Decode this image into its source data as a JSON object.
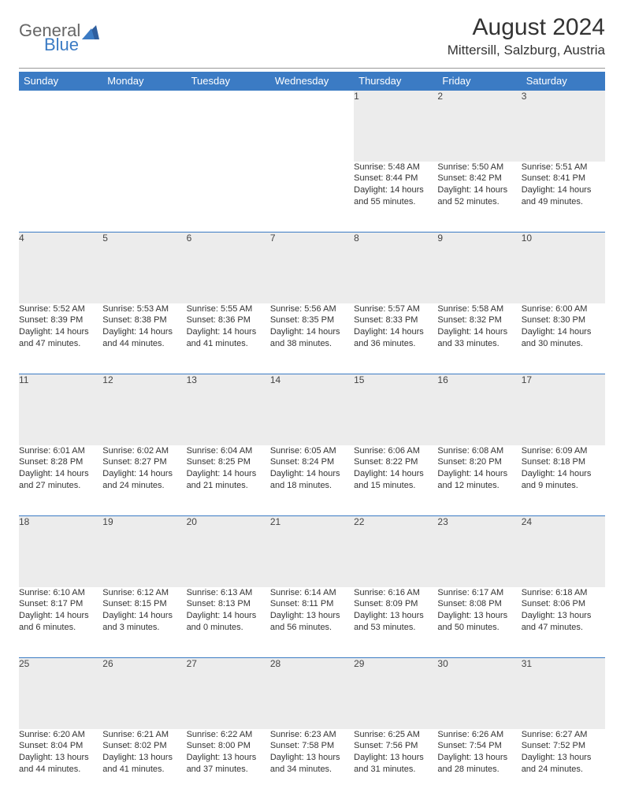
{
  "logo": {
    "text1": "General",
    "text2": "Blue"
  },
  "header": {
    "month_title": "August 2024",
    "location": "Mittersill, Salzburg, Austria"
  },
  "colors": {
    "header_bg": "#3b7bc4",
    "header_text": "#ffffff",
    "daynum_bg": "#ececec",
    "border_top": "#3b7bc4",
    "body_text": "#333333"
  },
  "day_headers": [
    "Sunday",
    "Monday",
    "Tuesday",
    "Wednesday",
    "Thursday",
    "Friday",
    "Saturday"
  ],
  "weeks": [
    {
      "nums": [
        "",
        "",
        "",
        "",
        "1",
        "2",
        "3"
      ],
      "cells": [
        null,
        null,
        null,
        null,
        {
          "sunrise": "5:48 AM",
          "sunset": "8:44 PM",
          "daylight": "14 hours and 55 minutes."
        },
        {
          "sunrise": "5:50 AM",
          "sunset": "8:42 PM",
          "daylight": "14 hours and 52 minutes."
        },
        {
          "sunrise": "5:51 AM",
          "sunset": "8:41 PM",
          "daylight": "14 hours and 49 minutes."
        }
      ]
    },
    {
      "nums": [
        "4",
        "5",
        "6",
        "7",
        "8",
        "9",
        "10"
      ],
      "cells": [
        {
          "sunrise": "5:52 AM",
          "sunset": "8:39 PM",
          "daylight": "14 hours and 47 minutes."
        },
        {
          "sunrise": "5:53 AM",
          "sunset": "8:38 PM",
          "daylight": "14 hours and 44 minutes."
        },
        {
          "sunrise": "5:55 AM",
          "sunset": "8:36 PM",
          "daylight": "14 hours and 41 minutes."
        },
        {
          "sunrise": "5:56 AM",
          "sunset": "8:35 PM",
          "daylight": "14 hours and 38 minutes."
        },
        {
          "sunrise": "5:57 AM",
          "sunset": "8:33 PM",
          "daylight": "14 hours and 36 minutes."
        },
        {
          "sunrise": "5:58 AM",
          "sunset": "8:32 PM",
          "daylight": "14 hours and 33 minutes."
        },
        {
          "sunrise": "6:00 AM",
          "sunset": "8:30 PM",
          "daylight": "14 hours and 30 minutes."
        }
      ]
    },
    {
      "nums": [
        "11",
        "12",
        "13",
        "14",
        "15",
        "16",
        "17"
      ],
      "cells": [
        {
          "sunrise": "6:01 AM",
          "sunset": "8:28 PM",
          "daylight": "14 hours and 27 minutes."
        },
        {
          "sunrise": "6:02 AM",
          "sunset": "8:27 PM",
          "daylight": "14 hours and 24 minutes."
        },
        {
          "sunrise": "6:04 AM",
          "sunset": "8:25 PM",
          "daylight": "14 hours and 21 minutes."
        },
        {
          "sunrise": "6:05 AM",
          "sunset": "8:24 PM",
          "daylight": "14 hours and 18 minutes."
        },
        {
          "sunrise": "6:06 AM",
          "sunset": "8:22 PM",
          "daylight": "14 hours and 15 minutes."
        },
        {
          "sunrise": "6:08 AM",
          "sunset": "8:20 PM",
          "daylight": "14 hours and 12 minutes."
        },
        {
          "sunrise": "6:09 AM",
          "sunset": "8:18 PM",
          "daylight": "14 hours and 9 minutes."
        }
      ]
    },
    {
      "nums": [
        "18",
        "19",
        "20",
        "21",
        "22",
        "23",
        "24"
      ],
      "cells": [
        {
          "sunrise": "6:10 AM",
          "sunset": "8:17 PM",
          "daylight": "14 hours and 6 minutes."
        },
        {
          "sunrise": "6:12 AM",
          "sunset": "8:15 PM",
          "daylight": "14 hours and 3 minutes."
        },
        {
          "sunrise": "6:13 AM",
          "sunset": "8:13 PM",
          "daylight": "14 hours and 0 minutes."
        },
        {
          "sunrise": "6:14 AM",
          "sunset": "8:11 PM",
          "daylight": "13 hours and 56 minutes."
        },
        {
          "sunrise": "6:16 AM",
          "sunset": "8:09 PM",
          "daylight": "13 hours and 53 minutes."
        },
        {
          "sunrise": "6:17 AM",
          "sunset": "8:08 PM",
          "daylight": "13 hours and 50 minutes."
        },
        {
          "sunrise": "6:18 AM",
          "sunset": "8:06 PM",
          "daylight": "13 hours and 47 minutes."
        }
      ]
    },
    {
      "nums": [
        "25",
        "26",
        "27",
        "28",
        "29",
        "30",
        "31"
      ],
      "cells": [
        {
          "sunrise": "6:20 AM",
          "sunset": "8:04 PM",
          "daylight": "13 hours and 44 minutes."
        },
        {
          "sunrise": "6:21 AM",
          "sunset": "8:02 PM",
          "daylight": "13 hours and 41 minutes."
        },
        {
          "sunrise": "6:22 AM",
          "sunset": "8:00 PM",
          "daylight": "13 hours and 37 minutes."
        },
        {
          "sunrise": "6:23 AM",
          "sunset": "7:58 PM",
          "daylight": "13 hours and 34 minutes."
        },
        {
          "sunrise": "6:25 AM",
          "sunset": "7:56 PM",
          "daylight": "13 hours and 31 minutes."
        },
        {
          "sunrise": "6:26 AM",
          "sunset": "7:54 PM",
          "daylight": "13 hours and 28 minutes."
        },
        {
          "sunrise": "6:27 AM",
          "sunset": "7:52 PM",
          "daylight": "13 hours and 24 minutes."
        }
      ]
    }
  ],
  "labels": {
    "sunrise_prefix": "Sunrise: ",
    "sunset_prefix": "Sunset: ",
    "daylight_prefix": "Daylight: "
  }
}
